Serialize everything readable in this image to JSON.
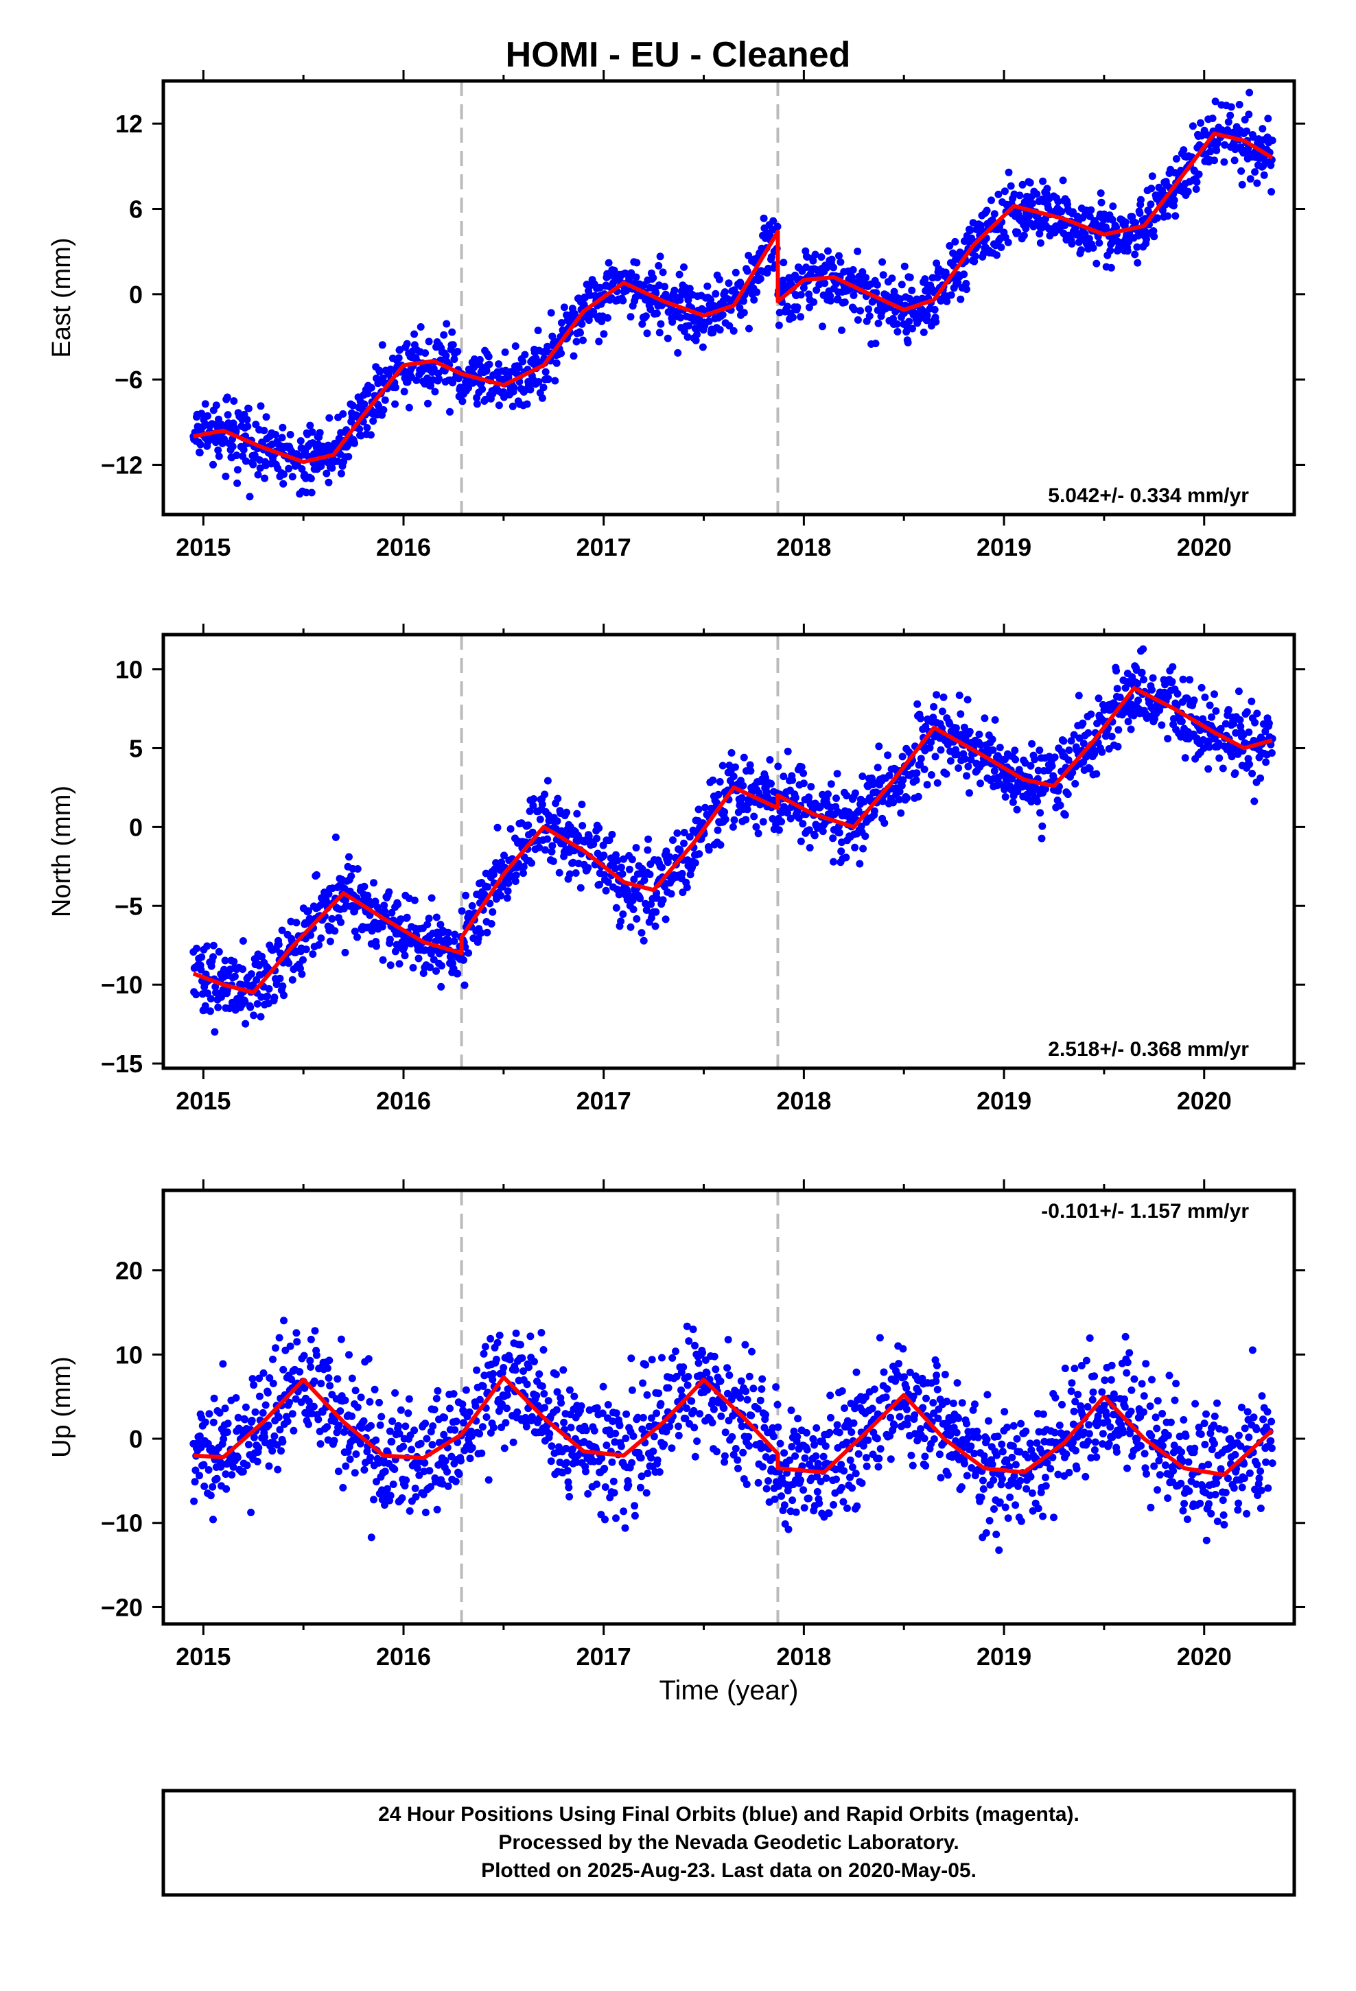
{
  "title": "HOMI  - EU - Cleaned",
  "xlabel": "Time (year)",
  "footer": {
    "line1": "24 Hour Positions Using Final Orbits (blue) and Rapid Orbits (magenta).",
    "line2": "Processed by the Nevada Geodetic Laboratory.",
    "line3": "Plotted on 2025-Aug-23. Last data on 2020-May-05."
  },
  "colors": {
    "points": "#0000ff",
    "model": "#ff0000",
    "breaks": "#bbbbbb",
    "frame": "#000000"
  },
  "chart_data": [
    {
      "type": "scatter",
      "name": "east",
      "ylabel": "East (mm)",
      "rate_label": "5.042+/- 0.334 mm/yr",
      "rate_position": "bottom-right",
      "xlim": [
        2014.8,
        2020.45
      ],
      "ylim": [
        -15.5,
        15
      ],
      "x_ticks": [
        2015,
        2016,
        2017,
        2018,
        2019,
        2020
      ],
      "y_ticks": [
        -12,
        -6,
        0,
        6,
        12
      ],
      "y_tick_labels": [
        "−12",
        "−6",
        "0",
        "6",
        "12"
      ],
      "break_epochs": [
        2016.29,
        2017.87
      ],
      "data_start": 2014.95,
      "data_end": 2020.34,
      "model_points": [
        [
          2014.95,
          -10.0
        ],
        [
          2015.1,
          -9.6
        ],
        [
          2015.3,
          -10.8
        ],
        [
          2015.5,
          -11.8
        ],
        [
          2015.65,
          -11.3
        ],
        [
          2015.8,
          -8.5
        ],
        [
          2016.0,
          -5.0
        ],
        [
          2016.15,
          -4.7
        ],
        [
          2016.29,
          -5.6
        ],
        [
          2016.5,
          -6.4
        ],
        [
          2016.7,
          -5.0
        ],
        [
          2016.9,
          -1.2
        ],
        [
          2017.1,
          0.8
        ],
        [
          2017.3,
          -0.5
        ],
        [
          2017.5,
          -1.5
        ],
        [
          2017.65,
          -0.8
        ],
        [
          2017.87,
          4.4
        ],
        [
          2017.87,
          -0.5
        ],
        [
          2018.0,
          1.0
        ],
        [
          2018.15,
          1.2
        ],
        [
          2018.3,
          0.2
        ],
        [
          2018.5,
          -1.1
        ],
        [
          2018.65,
          -0.4
        ],
        [
          2018.85,
          3.5
        ],
        [
          2019.05,
          6.2
        ],
        [
          2019.3,
          5.3
        ],
        [
          2019.5,
          4.2
        ],
        [
          2019.7,
          4.8
        ],
        [
          2019.9,
          8.5
        ],
        [
          2020.05,
          11.3
        ],
        [
          2020.2,
          10.8
        ],
        [
          2020.34,
          9.6
        ]
      ],
      "scatter_sigma": 1.1
    },
    {
      "type": "scatter",
      "name": "north",
      "ylabel": "North (mm)",
      "rate_label": "2.518+/- 0.368 mm/yr",
      "rate_position": "bottom-right",
      "xlim": [
        2014.8,
        2020.45
      ],
      "ylim": [
        -15.3,
        12.2
      ],
      "x_ticks": [
        2015,
        2016,
        2017,
        2018,
        2019,
        2020
      ],
      "y_ticks": [
        -15,
        -10,
        -5,
        0,
        5,
        10
      ],
      "y_tick_labels": [
        "−15",
        "−10",
        "−5",
        "0",
        "5",
        "10"
      ],
      "break_epochs": [
        2016.29,
        2017.87
      ],
      "data_start": 2014.95,
      "data_end": 2020.34,
      "model_points": [
        [
          2014.95,
          -9.3
        ],
        [
          2015.1,
          -10.0
        ],
        [
          2015.25,
          -10.5
        ],
        [
          2015.45,
          -7.5
        ],
        [
          2015.7,
          -4.2
        ],
        [
          2015.9,
          -5.8
        ],
        [
          2016.1,
          -7.3
        ],
        [
          2016.29,
          -8.0
        ],
        [
          2016.29,
          -7.0
        ],
        [
          2016.5,
          -3.0
        ],
        [
          2016.7,
          0.0
        ],
        [
          2016.9,
          -1.5
        ],
        [
          2017.1,
          -3.5
        ],
        [
          2017.25,
          -4.0
        ],
        [
          2017.45,
          -1.0
        ],
        [
          2017.65,
          2.5
        ],
        [
          2017.87,
          1.2
        ],
        [
          2017.87,
          2.0
        ],
        [
          2018.05,
          0.8
        ],
        [
          2018.25,
          0.0
        ],
        [
          2018.45,
          3.0
        ],
        [
          2018.65,
          6.3
        ],
        [
          2018.9,
          4.5
        ],
        [
          2019.1,
          3.0
        ],
        [
          2019.25,
          2.6
        ],
        [
          2019.45,
          5.5
        ],
        [
          2019.65,
          8.8
        ],
        [
          2019.85,
          7.5
        ],
        [
          2020.05,
          6.0
        ],
        [
          2020.2,
          5.0
        ],
        [
          2020.34,
          5.5
        ]
      ],
      "scatter_sigma": 1.2
    },
    {
      "type": "scatter",
      "name": "up",
      "ylabel": "Up (mm)",
      "rate_label": "-0.101+/- 1.157 mm/yr",
      "rate_position": "top-right",
      "xlim": [
        2014.8,
        2020.45
      ],
      "ylim": [
        -22,
        29.5
      ],
      "x_ticks": [
        2015,
        2016,
        2017,
        2018,
        2019,
        2020
      ],
      "y_ticks": [
        -20,
        -10,
        0,
        10,
        20
      ],
      "y_tick_labels": [
        "−20",
        "−10",
        "0",
        "10",
        "20"
      ],
      "break_epochs": [
        2016.29,
        2017.87
      ],
      "data_start": 2014.95,
      "data_end": 2020.34,
      "model_points": [
        [
          2014.95,
          -2.0
        ],
        [
          2015.1,
          -2.2
        ],
        [
          2015.3,
          2.0
        ],
        [
          2015.5,
          7.0
        ],
        [
          2015.7,
          2.0
        ],
        [
          2015.9,
          -2.0
        ],
        [
          2016.1,
          -2.3
        ],
        [
          2016.29,
          0.5
        ],
        [
          2016.5,
          7.3
        ],
        [
          2016.7,
          2.5
        ],
        [
          2016.9,
          -1.5
        ],
        [
          2017.1,
          -2.0
        ],
        [
          2017.3,
          2.0
        ],
        [
          2017.5,
          7.0
        ],
        [
          2017.7,
          2.5
        ],
        [
          2017.87,
          -1.8
        ],
        [
          2017.87,
          -3.5
        ],
        [
          2018.1,
          -4.0
        ],
        [
          2018.3,
          0.5
        ],
        [
          2018.5,
          5.2
        ],
        [
          2018.7,
          0.0
        ],
        [
          2018.9,
          -3.5
        ],
        [
          2019.1,
          -4.0
        ],
        [
          2019.3,
          -0.5
        ],
        [
          2019.5,
          5.0
        ],
        [
          2019.7,
          0.0
        ],
        [
          2019.9,
          -3.5
        ],
        [
          2020.1,
          -4.3
        ],
        [
          2020.34,
          1.0
        ]
      ],
      "scatter_sigma": 3.6
    }
  ]
}
